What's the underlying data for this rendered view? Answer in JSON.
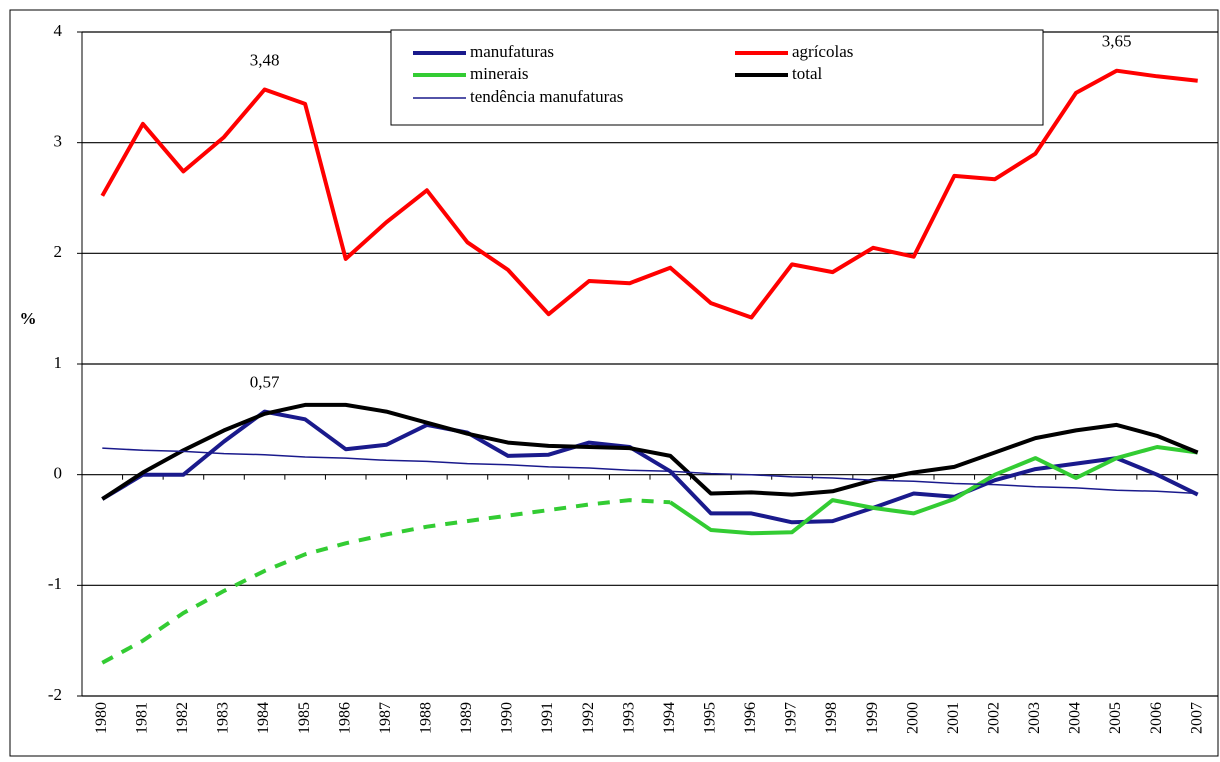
{
  "chart_data": {
    "type": "line",
    "y_label": "%",
    "categories": [
      "1980",
      "1981",
      "1982",
      "1983",
      "1984",
      "1985",
      "1986",
      "1987",
      "1988",
      "1989",
      "1990",
      "1991",
      "1992",
      "1993",
      "1994",
      "1995",
      "1996",
      "1997",
      "1998",
      "1999",
      "2000",
      "2001",
      "2002",
      "2003",
      "2004",
      "2005",
      "2006",
      "2007"
    ],
    "ylim": [
      -2,
      4
    ],
    "yticks": [
      -2,
      -1,
      0,
      1,
      2,
      3,
      4
    ],
    "grid": true,
    "series": [
      {
        "name": "manufaturas",
        "color": "#1a1a8c",
        "width": 4,
        "values": [
          -0.22,
          0.0,
          0.0,
          0.3,
          0.57,
          0.5,
          0.23,
          0.27,
          0.45,
          0.38,
          0.17,
          0.18,
          0.29,
          0.25,
          0.03,
          -0.35,
          -0.35,
          -0.43,
          -0.42,
          -0.3,
          -0.17,
          -0.2,
          -0.05,
          0.05,
          0.1,
          0.15,
          0.0,
          -0.18
        ],
        "value_labels": [
          null,
          null,
          null,
          null,
          "0,57",
          null,
          null,
          null,
          null,
          null,
          null,
          null,
          null,
          null,
          null,
          null,
          null,
          null,
          null,
          null,
          null,
          null,
          null,
          null,
          null,
          null,
          null,
          null
        ]
      },
      {
        "name": "agrícolas",
        "color": "#ff0000",
        "width": 4,
        "values": [
          2.52,
          3.17,
          2.74,
          3.05,
          3.48,
          3.35,
          1.95,
          2.28,
          2.57,
          2.1,
          1.85,
          1.45,
          1.75,
          1.73,
          1.87,
          1.55,
          1.42,
          1.9,
          1.83,
          2.05,
          1.97,
          2.7,
          2.67,
          2.9,
          3.45,
          3.65,
          3.6,
          3.56
        ],
        "value_labels": [
          null,
          null,
          null,
          null,
          "3,48",
          null,
          null,
          null,
          null,
          null,
          null,
          null,
          null,
          null,
          null,
          null,
          null,
          null,
          null,
          null,
          null,
          null,
          null,
          null,
          null,
          "3,65",
          null,
          null
        ]
      },
      {
        "name": "minerais",
        "color": "#33cc33",
        "width": 4,
        "dashed_until": 1994,
        "values": [
          -1.7,
          -1.5,
          -1.25,
          -1.05,
          -0.87,
          -0.72,
          -0.62,
          -0.54,
          -0.47,
          -0.42,
          -0.37,
          -0.32,
          -0.27,
          -0.23,
          -0.25,
          -0.5,
          -0.53,
          -0.52,
          -0.23,
          -0.3,
          -0.35,
          -0.22,
          0.0,
          0.15,
          -0.03,
          0.15,
          0.25,
          0.2
        ]
      },
      {
        "name": "total",
        "color": "#000000",
        "width": 4,
        "values": [
          -0.22,
          0.02,
          0.22,
          0.4,
          0.55,
          0.63,
          0.63,
          0.57,
          0.47,
          0.37,
          0.29,
          0.26,
          0.25,
          0.24,
          0.17,
          -0.17,
          -0.16,
          -0.18,
          -0.15,
          -0.05,
          0.02,
          0.07,
          0.2,
          0.33,
          0.4,
          0.45,
          0.35,
          0.2
        ]
      },
      {
        "name": "tendência manufaturas",
        "color": "#1a1a8c",
        "width": 1.5,
        "values": [
          0.24,
          0.22,
          0.21,
          0.19,
          0.18,
          0.16,
          0.15,
          0.13,
          0.12,
          0.1,
          0.09,
          0.07,
          0.06,
          0.04,
          0.03,
          0.01,
          0.0,
          -0.02,
          -0.03,
          -0.05,
          -0.06,
          -0.08,
          -0.09,
          -0.11,
          -0.12,
          -0.14,
          -0.15,
          -0.17
        ]
      }
    ]
  }
}
